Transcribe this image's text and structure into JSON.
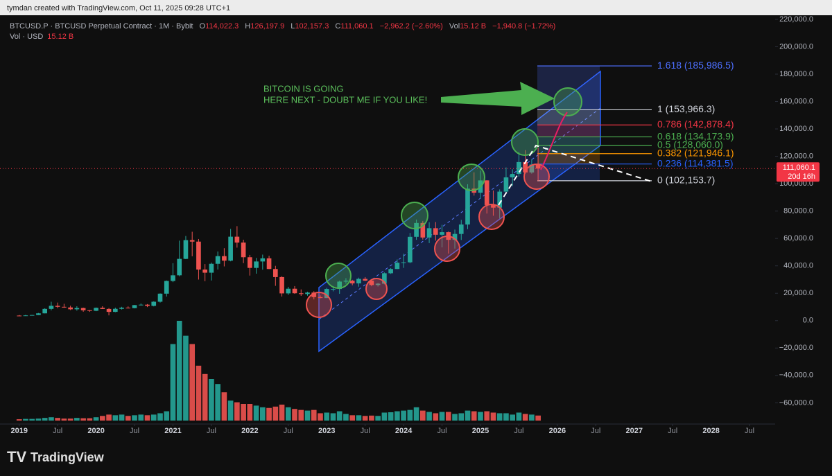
{
  "attribution": "tymdan created with TradingView.com, Oct 11, 2025 09:28 UTC+1",
  "brand": "TradingView",
  "chart_data": {
    "type": "candlestick",
    "header": {
      "symbol_line": "BTCUSD.P · BTCUSD Perpetual Contract · 1M · Bybit",
      "ohlc": [
        {
          "key": "O",
          "label": "114,022.3"
        },
        {
          "key": "H",
          "label": "126,197.9"
        },
        {
          "key": "L",
          "label": "102,157.3"
        },
        {
          "key": "C",
          "label": "111,060.1"
        }
      ],
      "change": "−2,962.2 (−2.60%)",
      "vol_key": "Vol",
      "vol_label": "15.12 B",
      "vol_change": "−1,940.8 (−1.72%)",
      "vol_line": "Vol · USD",
      "vol_line_value": "15.12 B"
    },
    "x": [
      "2019-01",
      "2019-02",
      "2019-03",
      "2019-04",
      "2019-05",
      "2019-06",
      "2019-07",
      "2019-08",
      "2019-09",
      "2019-10",
      "2019-11",
      "2019-12",
      "2020-01",
      "2020-02",
      "2020-03",
      "2020-04",
      "2020-05",
      "2020-06",
      "2020-07",
      "2020-08",
      "2020-09",
      "2020-10",
      "2020-11",
      "2020-12",
      "2021-01",
      "2021-02",
      "2021-03",
      "2021-04",
      "2021-05",
      "2021-06",
      "2021-07",
      "2021-08",
      "2021-09",
      "2021-10",
      "2021-11",
      "2021-12",
      "2022-01",
      "2022-02",
      "2022-03",
      "2022-04",
      "2022-05",
      "2022-06",
      "2022-07",
      "2022-08",
      "2022-09",
      "2022-10",
      "2022-11",
      "2022-12",
      "2023-01",
      "2023-02",
      "2023-03",
      "2023-04",
      "2023-05",
      "2023-06",
      "2023-07",
      "2023-08",
      "2023-09",
      "2023-10",
      "2023-11",
      "2023-12",
      "2024-01",
      "2024-02",
      "2024-03",
      "2024-04",
      "2024-05",
      "2024-06",
      "2024-07",
      "2024-08",
      "2024-09",
      "2024-10",
      "2024-11",
      "2024-12",
      "2025-01",
      "2025-02",
      "2025-03",
      "2025-04",
      "2025-05",
      "2025-06",
      "2025-07",
      "2025-08",
      "2025-09",
      "2025-10"
    ],
    "open": [
      3700,
      3440,
      3820,
      4100,
      5320,
      8570,
      10820,
      10080,
      9630,
      8290,
      9200,
      7570,
      7190,
      9350,
      8520,
      6410,
      8620,
      9450,
      9140,
      11350,
      11660,
      10780,
      13800,
      19700,
      28990,
      33100,
      45100,
      58800,
      57700,
      37300,
      35000,
      41500,
      47100,
      43800,
      61300,
      57000,
      46300,
      38500,
      43200,
      45500,
      37700,
      31800,
      19900,
      23300,
      20000,
      19400,
      20500,
      17200,
      16500,
      23100,
      23100,
      28500,
      29200,
      27200,
      30500,
      29200,
      26000,
      27000,
      34600,
      37700,
      42300,
      42600,
      61200,
      71300,
      60700,
      67500,
      62700,
      64600,
      59000,
      63300,
      70200,
      96400,
      93400,
      102400,
      84400,
      82500,
      94200,
      104600,
      107100,
      115800,
      108200,
      114022.3
    ],
    "high": [
      4100,
      4200,
      4150,
      5600,
      9000,
      13800,
      13200,
      12300,
      10900,
      10500,
      9500,
      7700,
      9600,
      10500,
      9200,
      9500,
      10100,
      10400,
      11450,
      12500,
      12100,
      14100,
      19900,
      29300,
      41950,
      58400,
      61800,
      64900,
      59600,
      41300,
      42400,
      50500,
      52900,
      67000,
      69000,
      59100,
      48000,
      45800,
      48200,
      47400,
      40000,
      32400,
      24700,
      25200,
      22800,
      21100,
      21500,
      18400,
      23900,
      25200,
      29200,
      31000,
      29800,
      31400,
      31800,
      30000,
      27500,
      35200,
      38400,
      44700,
      48900,
      64000,
      73800,
      72800,
      71900,
      72000,
      70000,
      65100,
      66500,
      73600,
      99600,
      108300,
      109600,
      102500,
      95000,
      95800,
      111900,
      110500,
      123200,
      124500,
      117900,
      126197.9
    ],
    "low": [
      3350,
      3400,
      3750,
      4050,
      5300,
      7500,
      9100,
      9400,
      7700,
      7300,
      6500,
      6400,
      6900,
      8500,
      3850,
      6150,
      8100,
      8900,
      8950,
      11100,
      9900,
      10400,
      13200,
      17600,
      28100,
      32400,
      44900,
      47000,
      30000,
      28800,
      29300,
      37300,
      39600,
      43300,
      53300,
      42000,
      32900,
      34300,
      37200,
      37600,
      25400,
      17600,
      18800,
      19600,
      18100,
      18200,
      15500,
      16300,
      16500,
      21400,
      19600,
      27000,
      25800,
      24800,
      28900,
      25100,
      24900,
      26500,
      34100,
      37600,
      38500,
      41900,
      59000,
      59200,
      56600,
      58400,
      53500,
      49000,
      52600,
      58900,
      66800,
      91300,
      89200,
      78200,
      76600,
      74600,
      93400,
      98200,
      105100,
      107300,
      107300,
      102157.3
    ],
    "close": [
      3440,
      3820,
      4100,
      5320,
      8570,
      10820,
      10080,
      9630,
      8290,
      9200,
      7570,
      7190,
      9350,
      8520,
      6410,
      8620,
      9450,
      9140,
      11350,
      11660,
      10780,
      13800,
      19700,
      28990,
      33100,
      45100,
      58800,
      57700,
      37300,
      35000,
      41500,
      47100,
      43800,
      61300,
      57000,
      46300,
      38500,
      43200,
      45500,
      37700,
      31800,
      19900,
      23300,
      20000,
      19400,
      20500,
      17200,
      16500,
      23100,
      23100,
      28500,
      29200,
      27200,
      30500,
      29200,
      26000,
      27000,
      34600,
      37700,
      42300,
      42600,
      61200,
      71300,
      60700,
      67500,
      62700,
      64600,
      59000,
      63300,
      70200,
      96400,
      93400,
      102400,
      84400,
      82500,
      94200,
      104600,
      107100,
      115800,
      108200,
      114000,
      111060.1
    ],
    "volume": [
      4,
      5,
      5,
      6,
      8,
      10,
      8,
      6,
      6,
      8,
      7,
      7,
      10,
      14,
      18,
      16,
      18,
      14,
      16,
      18,
      16,
      18,
      22,
      28,
      230,
      300,
      255,
      230,
      165,
      140,
      125,
      110,
      85,
      60,
      55,
      50,
      50,
      45,
      40,
      38,
      42,
      48,
      40,
      35,
      32,
      30,
      32,
      22,
      24,
      22,
      28,
      20,
      16,
      16,
      14,
      15,
      14,
      24,
      25,
      28,
      30,
      32,
      40,
      30,
      26,
      22,
      26,
      26,
      20,
      22,
      30,
      28,
      26,
      28,
      24,
      22,
      22,
      18,
      24,
      20,
      18,
      15.12
    ],
    "up_color": "#26a69a",
    "down_color": "#ef5350",
    "ylim": [
      -75000,
      223000
    ],
    "yticks": [
      {
        "value": -60000,
        "label": "−60,000.0"
      },
      {
        "value": -40000,
        "label": "−40,000.0"
      },
      {
        "value": -20000,
        "label": "−20,000.0"
      },
      {
        "value": 0,
        "label": "0.0"
      },
      {
        "value": 20000,
        "label": "20,000.0"
      },
      {
        "value": 40000,
        "label": "40,000.0"
      },
      {
        "value": 60000,
        "label": "60,000.0"
      },
      {
        "value": 80000,
        "label": "80,000.0"
      },
      {
        "value": 100000,
        "label": "100,000.0"
      },
      {
        "value": 120000,
        "label": "120,000.0"
      },
      {
        "value": 140000,
        "label": "140,000.0"
      },
      {
        "value": 160000,
        "label": "160,000.0"
      },
      {
        "value": 180000,
        "label": "180,000.0"
      },
      {
        "value": 200000,
        "label": "200,000.0"
      },
      {
        "value": 220000,
        "label": "220,000.0"
      }
    ],
    "xlim": [
      "2018-10",
      "2028-11"
    ],
    "xticks": [
      {
        "value": "2019-01",
        "label": "2019"
      },
      {
        "value": "2019-07",
        "label": "Jul"
      },
      {
        "value": "2020-01",
        "label": "2020"
      },
      {
        "value": "2020-07",
        "label": "Jul"
      },
      {
        "value": "2021-01",
        "label": "2021"
      },
      {
        "value": "2021-07",
        "label": "Jul"
      },
      {
        "value": "2022-01",
        "label": "2022"
      },
      {
        "value": "2022-07",
        "label": "Jul"
      },
      {
        "value": "2023-01",
        "label": "2023"
      },
      {
        "value": "2023-07",
        "label": "Jul"
      },
      {
        "value": "2024-01",
        "label": "2024"
      },
      {
        "value": "2024-07",
        "label": "Jul"
      },
      {
        "value": "2025-01",
        "label": "2025"
      },
      {
        "value": "2025-07",
        "label": "Jul"
      },
      {
        "value": "2026-01",
        "label": "2026"
      },
      {
        "value": "2026-07",
        "label": "Jul"
      },
      {
        "value": "2027-01",
        "label": "2027"
      },
      {
        "value": "2027-07",
        "label": "Jul"
      },
      {
        "value": "2028-01",
        "label": "2028"
      },
      {
        "value": "2028-07",
        "label": "Jul"
      }
    ],
    "vlim": [
      0,
      300
    ],
    "fib_levels": [
      {
        "value": 185986.5,
        "label": "1.618 (185,986.5)",
        "color": "#4d6fff"
      },
      {
        "value": 153966.3,
        "label": "1 (153,966.3)",
        "color": "#d1d4dc"
      },
      {
        "value": 142878.4,
        "label": "0.786 (142,878.4)",
        "color": "#f23645"
      },
      {
        "value": 134173.9,
        "label": "0.618 (134,173.9)",
        "color": "#4caf50"
      },
      {
        "value": 128060.0,
        "label": "0.5 (128,060.0)",
        "color": "#4caf50"
      },
      {
        "value": 121946.1,
        "label": "0.382 (121,946.1)",
        "color": "#ff9800"
      },
      {
        "value": 114381.5,
        "label": "0.236 (114,381.5)",
        "color": "#2962ff"
      },
      {
        "value": 102153.7,
        "label": "0 (102,153.7)",
        "color": "#d1d4dc"
      }
    ],
    "annotation": [
      "BITCOIN IS GOING",
      "HERE NEXT - DOUBT ME IF YOU LIKE!"
    ],
    "last_price_label": "111,060.1",
    "countdown": "20d 16h"
  }
}
